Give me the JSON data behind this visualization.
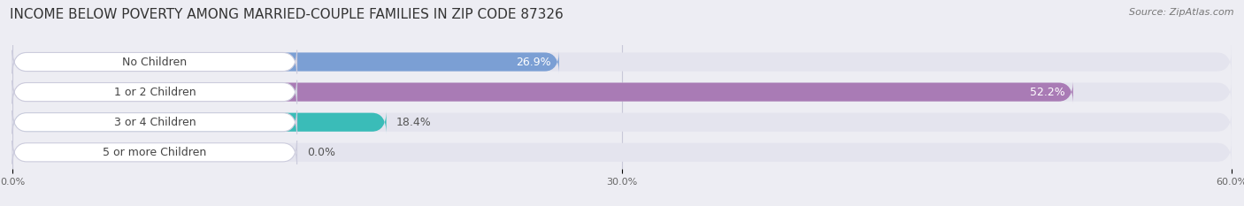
{
  "title": "INCOME BELOW POVERTY AMONG MARRIED-COUPLE FAMILIES IN ZIP CODE 87326",
  "source": "Source: ZipAtlas.com",
  "categories": [
    "No Children",
    "1 or 2 Children",
    "3 or 4 Children",
    "5 or more Children"
  ],
  "values": [
    26.9,
    52.2,
    18.4,
    0.0
  ],
  "bar_colors": [
    "#7b9fd4",
    "#a97bb5",
    "#3abcb8",
    "#a0a8d8"
  ],
  "bg_color": "#ededf3",
  "bar_bg_color": "#e4e4ee",
  "label_bg_color": "#ffffff",
  "xlim": [
    0,
    60
  ],
  "xticks": [
    0.0,
    30.0,
    60.0
  ],
  "xtick_labels": [
    "0.0%",
    "30.0%",
    "60.0%"
  ],
  "title_fontsize": 11,
  "source_fontsize": 8,
  "category_fontsize": 9,
  "value_label_fontsize": 9,
  "bar_height": 0.62,
  "figsize": [
    14.06,
    2.33
  ],
  "dpi": 100
}
